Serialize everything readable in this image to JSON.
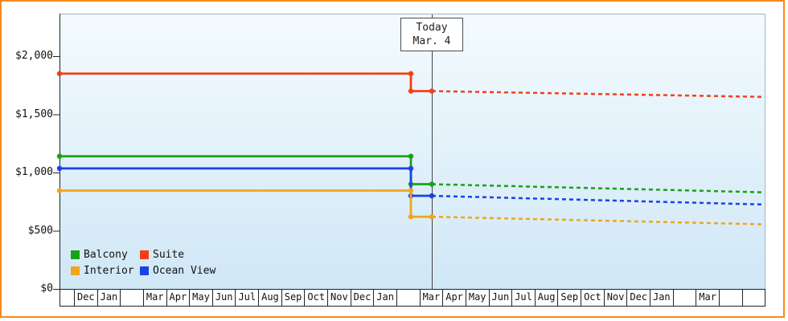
{
  "today_box": {
    "line1": "Today",
    "line2": "Mar. 4"
  },
  "y_axis": {
    "labels": [
      "$0",
      "$500",
      "$1,000",
      "$1,500",
      "$2,000"
    ],
    "values": [
      0,
      500,
      1000,
      1500,
      2000
    ]
  },
  "x_axis": {
    "month_cells": [
      "",
      "Dec",
      "Jan",
      "",
      "Mar",
      "Apr",
      "May",
      "Jun",
      "Jul",
      "Aug",
      "Sep",
      "Oct",
      "Nov",
      "Dec",
      "Jan",
      "",
      "Mar",
      "Apr",
      "May",
      "Jun",
      "Jul",
      "Aug",
      "Sep",
      "Oct",
      "Nov",
      "Dec",
      "Jan",
      "",
      "Mar",
      "",
      ""
    ]
  },
  "legend": {
    "items": [
      {
        "label": "Balcony",
        "color": "#17A217"
      },
      {
        "label": "Suite",
        "color": "#F43F17"
      },
      {
        "label": "Interior",
        "color": "#F0A51E"
      },
      {
        "label": "Ocean View",
        "color": "#1941E8"
      }
    ]
  },
  "colors": {
    "frame_border": "#F5891D",
    "axis": "#222222",
    "today_line": "#444444",
    "plot_bg_top": "#F4FBFE",
    "plot_bg_bottom": "#D0E7F6"
  },
  "chart_data": {
    "type": "line",
    "title": "",
    "xlabel": "",
    "ylabel": "",
    "ylim": [
      0,
      2000
    ],
    "y_ticks": [
      0,
      500,
      1000,
      1500,
      2000
    ],
    "x_tick_labels": [
      "Dec",
      "Jan",
      "Mar",
      "Apr",
      "May",
      "Jun",
      "Jul",
      "Aug",
      "Sep",
      "Oct",
      "Nov",
      "Dec",
      "Jan",
      "Mar",
      "Apr",
      "May",
      "Jun",
      "Jul",
      "Aug",
      "Sep",
      "Oct",
      "Nov",
      "Dec",
      "Jan",
      "Mar"
    ],
    "today_annotation": "Today Mar. 4",
    "grid": false,
    "legend_position": "bottom-left",
    "series": [
      {
        "name": "Suite",
        "color": "#F43F17",
        "history_price": 1850,
        "price_at_today": 1700,
        "forecast_end_price": 1650,
        "history_style": "solid",
        "forecast_style": "dashed"
      },
      {
        "name": "Balcony",
        "color": "#17A217",
        "history_price": 1140,
        "price_at_today": 900,
        "forecast_end_price": 830,
        "history_style": "solid",
        "forecast_style": "dashed"
      },
      {
        "name": "Ocean View",
        "color": "#1941E8",
        "history_price": 1035,
        "price_at_today": 800,
        "forecast_end_price": 725,
        "history_style": "solid",
        "forecast_style": "dashed"
      },
      {
        "name": "Interior",
        "color": "#F0A51E",
        "history_price": 845,
        "price_at_today": 620,
        "forecast_end_price": 555,
        "history_style": "solid",
        "forecast_style": "dashed"
      }
    ]
  }
}
